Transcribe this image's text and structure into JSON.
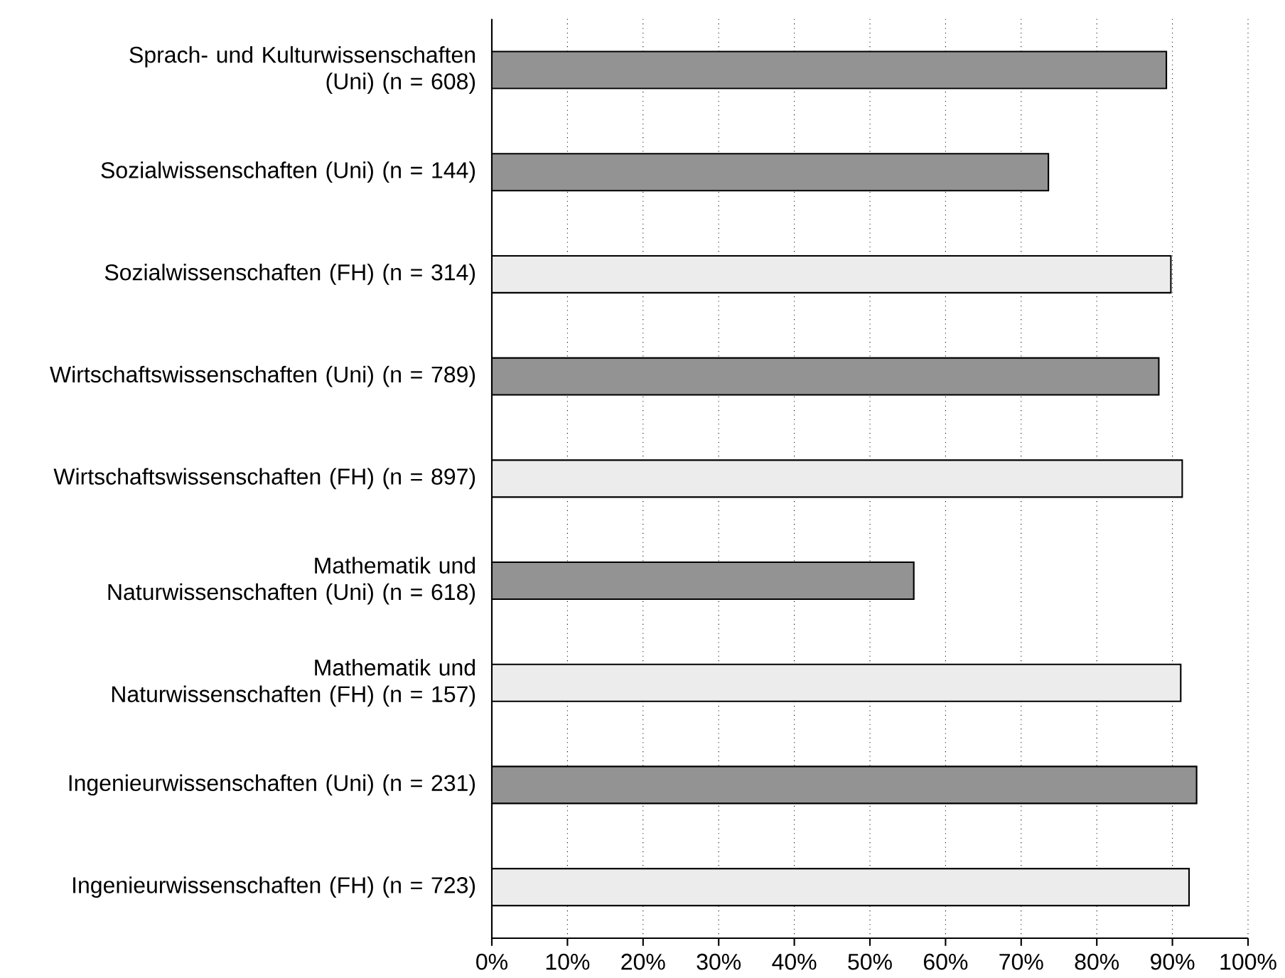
{
  "chart_data": {
    "type": "bar",
    "orientation": "horizontal",
    "grid": "x",
    "categories": [
      "Sprach- und Kulturwissenschaften (Uni) (n = 608)",
      "Sozialwissenschaften (Uni) (n = 144)",
      "Sozialwissenschaften (FH) (n = 314)",
      "Wirtschaftswissenschaften (Uni) (n = 789)",
      "Wirtschaftswissenschaften (FH) (n = 897)",
      "Mathematik und Naturwissenschaften (Uni) (n = 618)",
      "Mathematik und Naturwissenschaften (FH) (n = 157)",
      "Ingenieurwissenschaften (Uni) (n = 231)",
      "Ingenieurwissenschaften (FH) (n = 723)"
    ],
    "values": [
      89.2,
      73.6,
      89.8,
      88.2,
      91.3,
      55.8,
      91.1,
      93.2,
      92.2
    ],
    "colors": [
      "#939393",
      "#939393",
      "#ececec",
      "#939393",
      "#ececec",
      "#939393",
      "#ececec",
      "#939393",
      "#ececec"
    ],
    "xlim": [
      0,
      100
    ],
    "xticks": [
      {
        "value": 0,
        "label": "0%"
      },
      {
        "value": 10,
        "label": "10%"
      },
      {
        "value": 20,
        "label": "20%"
      },
      {
        "value": 30,
        "label": "30%"
      },
      {
        "value": 40,
        "label": "40%"
      },
      {
        "value": 50,
        "label": "50%"
      },
      {
        "value": 60,
        "label": "60%"
      },
      {
        "value": 70,
        "label": "70%"
      },
      {
        "value": 80,
        "label": "80%"
      },
      {
        "value": 90,
        "label": "90%"
      },
      {
        "value": 100,
        "label": "100%"
      }
    ]
  }
}
